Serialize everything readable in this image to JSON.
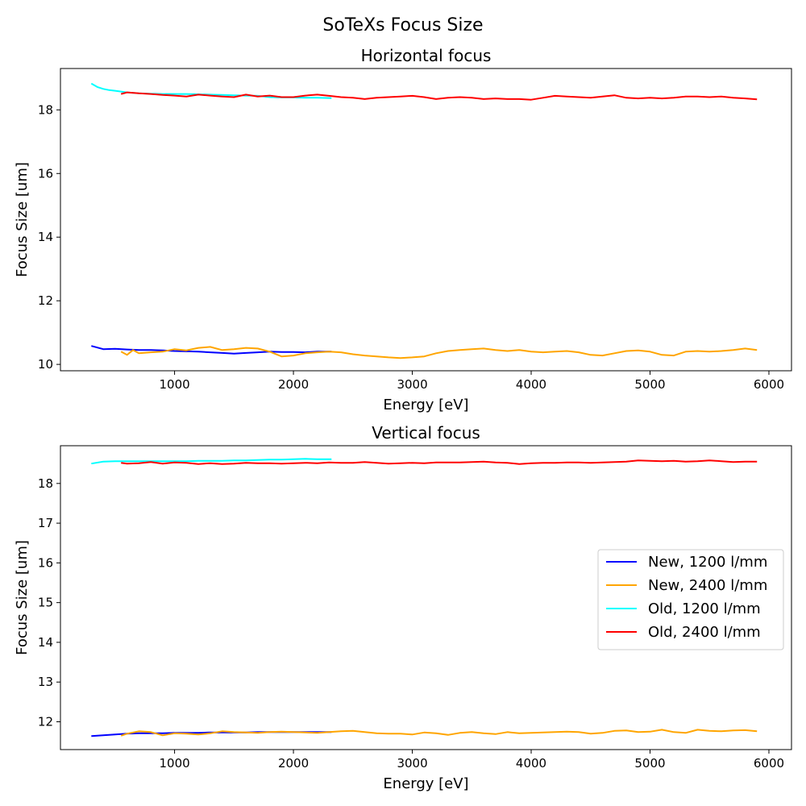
{
  "figure_title": "SoTeXs Focus Size",
  "chart_data": [
    {
      "type": "line",
      "title": "Horizontal focus",
      "xlabel": "Energy [eV]",
      "ylabel": "Focus Size [um]",
      "xlim": [
        40,
        6190
      ],
      "ylim": [
        9.8,
        19.3
      ],
      "xticks": [
        1000,
        2000,
        3000,
        4000,
        5000,
        6000
      ],
      "xtick_labels": [
        "1000",
        "2000",
        "3000",
        "4000",
        "5000",
        "6000"
      ],
      "yticks": [
        10,
        12,
        14,
        16,
        18
      ],
      "ytick_labels": [
        "10",
        "12",
        "14",
        "16",
        "18"
      ],
      "grid": false,
      "legend": null,
      "series": [
        {
          "name": "New, 1200 l/mm",
          "color": "#0000ff",
          "x": [
            300,
            400,
            500,
            600,
            700,
            800,
            900,
            1000,
            1100,
            1200,
            1300,
            1400,
            1500,
            1600,
            1700,
            1800,
            1900,
            2000,
            2100,
            2200,
            2320
          ],
          "y": [
            10.58,
            10.48,
            10.49,
            10.47,
            10.45,
            10.45,
            10.44,
            10.42,
            10.41,
            10.4,
            10.38,
            10.36,
            10.34,
            10.36,
            10.38,
            10.4,
            10.39,
            10.39,
            10.38,
            10.4,
            10.4
          ]
        },
        {
          "name": "New, 2400 l/mm",
          "color": "#ffa500",
          "x": [
            550,
            600,
            650,
            700,
            800,
            900,
            1000,
            1100,
            1200,
            1300,
            1400,
            1500,
            1600,
            1700,
            1800,
            1900,
            2000,
            2100,
            2200,
            2300,
            2400,
            2500,
            2600,
            2700,
            2800,
            2900,
            3000,
            3100,
            3200,
            3300,
            3400,
            3500,
            3600,
            3700,
            3800,
            3900,
            4000,
            4100,
            4200,
            4300,
            4400,
            4500,
            4600,
            4700,
            4800,
            4900,
            5000,
            5100,
            5200,
            5300,
            5400,
            5500,
            5600,
            5700,
            5800,
            5900
          ],
          "y": [
            10.4,
            10.3,
            10.45,
            10.35,
            10.38,
            10.4,
            10.48,
            10.44,
            10.52,
            10.55,
            10.45,
            10.48,
            10.52,
            10.5,
            10.4,
            10.25,
            10.28,
            10.35,
            10.38,
            10.4,
            10.38,
            10.32,
            10.28,
            10.25,
            10.22,
            10.2,
            10.22,
            10.25,
            10.35,
            10.42,
            10.45,
            10.48,
            10.5,
            10.45,
            10.42,
            10.45,
            10.4,
            10.38,
            10.4,
            10.42,
            10.38,
            10.3,
            10.28,
            10.35,
            10.42,
            10.44,
            10.4,
            10.3,
            10.28,
            10.4,
            10.42,
            10.4,
            10.42,
            10.45,
            10.5,
            10.45
          ]
        },
        {
          "name": "Old, 1200 l/mm",
          "color": "#00ffff",
          "x": [
            300,
            350,
            400,
            450,
            500,
            600,
            700,
            800,
            900,
            1000,
            1100,
            1200,
            1300,
            1400,
            1500,
            1600,
            1700,
            1800,
            1900,
            2000,
            2100,
            2200,
            2320
          ],
          "y": [
            18.83,
            18.72,
            18.66,
            18.62,
            18.6,
            18.55,
            18.52,
            18.51,
            18.5,
            18.5,
            18.5,
            18.49,
            18.48,
            18.47,
            18.46,
            18.45,
            18.44,
            18.4,
            18.39,
            18.39,
            18.38,
            18.38,
            18.37
          ]
        },
        {
          "name": "Old, 2400 l/mm",
          "color": "#ff0000",
          "x": [
            550,
            600,
            700,
            800,
            900,
            1000,
            1100,
            1200,
            1300,
            1400,
            1500,
            1600,
            1700,
            1800,
            1900,
            2000,
            2100,
            2200,
            2300,
            2400,
            2500,
            2600,
            2700,
            2800,
            2900,
            3000,
            3100,
            3200,
            3300,
            3400,
            3500,
            3600,
            3700,
            3800,
            3900,
            4000,
            4100,
            4200,
            4300,
            4400,
            4500,
            4600,
            4700,
            4800,
            4900,
            5000,
            5100,
            5200,
            5300,
            5400,
            5500,
            5600,
            5700,
            5800,
            5900
          ],
          "y": [
            18.5,
            18.55,
            18.52,
            18.5,
            18.47,
            18.45,
            18.42,
            18.48,
            18.45,
            18.42,
            18.4,
            18.48,
            18.42,
            18.45,
            18.4,
            18.4,
            18.45,
            18.48,
            18.44,
            18.4,
            18.38,
            18.34,
            18.38,
            18.4,
            18.42,
            18.44,
            18.4,
            18.34,
            18.38,
            18.4,
            18.38,
            18.34,
            18.36,
            18.34,
            18.34,
            18.32,
            18.38,
            18.44,
            18.42,
            18.4,
            18.38,
            18.42,
            18.46,
            18.38,
            18.36,
            18.38,
            18.36,
            18.38,
            18.42,
            18.42,
            18.4,
            18.42,
            18.38,
            18.36,
            18.33
          ]
        }
      ]
    },
    {
      "type": "line",
      "title": "Vertical focus",
      "xlabel": "Energy [eV]",
      "ylabel": "Focus Size [um]",
      "xlim": [
        40,
        6190
      ],
      "ylim": [
        11.3,
        18.95
      ],
      "xticks": [
        1000,
        2000,
        3000,
        4000,
        5000,
        6000
      ],
      "xtick_labels": [
        "1000",
        "2000",
        "3000",
        "4000",
        "5000",
        "6000"
      ],
      "yticks": [
        12,
        13,
        14,
        15,
        16,
        17,
        18
      ],
      "ytick_labels": [
        "12",
        "13",
        "14",
        "15",
        "16",
        "17",
        "18"
      ],
      "grid": false,
      "legend": {
        "placement": "center-right",
        "entries": [
          "New, 1200 l/mm",
          "New, 2400 l/mm",
          "Old, 1200 l/mm",
          "Old, 2400 l/mm"
        ]
      },
      "series": [
        {
          "name": "New, 1200 l/mm",
          "color": "#0000ff",
          "x": [
            300,
            400,
            500,
            600,
            700,
            800,
            900,
            1000,
            1100,
            1200,
            1300,
            1400,
            1500,
            1600,
            1700,
            1800,
            1900,
            2000,
            2100,
            2200,
            2320
          ],
          "y": [
            11.64,
            11.66,
            11.68,
            11.7,
            11.71,
            11.71,
            11.71,
            11.72,
            11.72,
            11.72,
            11.73,
            11.73,
            11.73,
            11.73,
            11.74,
            11.74,
            11.74,
            11.74,
            11.74,
            11.74,
            11.74
          ]
        },
        {
          "name": "New, 2400 l/mm",
          "color": "#ffa500",
          "x": [
            550,
            600,
            700,
            800,
            900,
            1000,
            1100,
            1200,
            1300,
            1400,
            1500,
            1600,
            1700,
            1800,
            1900,
            2000,
            2100,
            2200,
            2300,
            2400,
            2500,
            2600,
            2700,
            2800,
            2900,
            3000,
            3100,
            3200,
            3300,
            3400,
            3500,
            3600,
            3700,
            3800,
            3900,
            4000,
            4100,
            4200,
            4300,
            4400,
            4500,
            4600,
            4700,
            4800,
            4900,
            5000,
            5100,
            5200,
            5300,
            5400,
            5500,
            5600,
            5700,
            5800,
            5900
          ],
          "y": [
            11.65,
            11.7,
            11.76,
            11.74,
            11.66,
            11.71,
            11.7,
            11.68,
            11.71,
            11.76,
            11.74,
            11.73,
            11.72,
            11.74,
            11.75,
            11.74,
            11.73,
            11.72,
            11.74,
            11.76,
            11.77,
            11.74,
            11.71,
            11.7,
            11.7,
            11.68,
            11.73,
            11.71,
            11.67,
            11.72,
            11.74,
            11.71,
            11.69,
            11.74,
            11.71,
            11.72,
            11.73,
            11.74,
            11.75,
            11.74,
            11.7,
            11.72,
            11.77,
            11.78,
            11.74,
            11.75,
            11.8,
            11.74,
            11.72,
            11.8,
            11.77,
            11.76,
            11.78,
            11.79,
            11.76
          ]
        },
        {
          "name": "Old, 1200 l/mm",
          "color": "#00ffff",
          "x": [
            300,
            400,
            500,
            600,
            700,
            800,
            900,
            1000,
            1100,
            1200,
            1300,
            1400,
            1500,
            1600,
            1700,
            1800,
            1900,
            2000,
            2100,
            2200,
            2320
          ],
          "y": [
            18.5,
            18.55,
            18.56,
            18.56,
            18.56,
            18.56,
            18.56,
            18.56,
            18.56,
            18.57,
            18.57,
            18.57,
            18.58,
            18.58,
            18.59,
            18.6,
            18.6,
            18.61,
            18.62,
            18.61,
            18.61
          ]
        },
        {
          "name": "Old, 2400 l/mm",
          "color": "#ff0000",
          "x": [
            550,
            600,
            700,
            800,
            900,
            1000,
            1100,
            1200,
            1300,
            1400,
            1500,
            1600,
            1700,
            1800,
            1900,
            2000,
            2100,
            2200,
            2300,
            2400,
            2500,
            2600,
            2700,
            2800,
            2900,
            3000,
            3100,
            3200,
            3300,
            3400,
            3500,
            3600,
            3700,
            3800,
            3900,
            4000,
            4100,
            4200,
            4300,
            4400,
            4500,
            4600,
            4700,
            4800,
            4900,
            5000,
            5100,
            5200,
            5300,
            5400,
            5500,
            5600,
            5700,
            5800,
            5900
          ],
          "y": [
            18.52,
            18.5,
            18.51,
            18.54,
            18.5,
            18.53,
            18.52,
            18.49,
            18.51,
            18.49,
            18.5,
            18.52,
            18.51,
            18.51,
            18.5,
            18.51,
            18.52,
            18.51,
            18.53,
            18.52,
            18.52,
            18.54,
            18.52,
            18.5,
            18.51,
            18.52,
            18.51,
            18.53,
            18.53,
            18.53,
            18.54,
            18.55,
            18.53,
            18.52,
            18.49,
            18.51,
            18.52,
            18.52,
            18.53,
            18.53,
            18.52,
            18.53,
            18.54,
            18.55,
            18.58,
            18.57,
            18.56,
            18.57,
            18.55,
            18.56,
            18.58,
            18.56,
            18.54,
            18.55,
            18.55
          ]
        }
      ]
    }
  ]
}
